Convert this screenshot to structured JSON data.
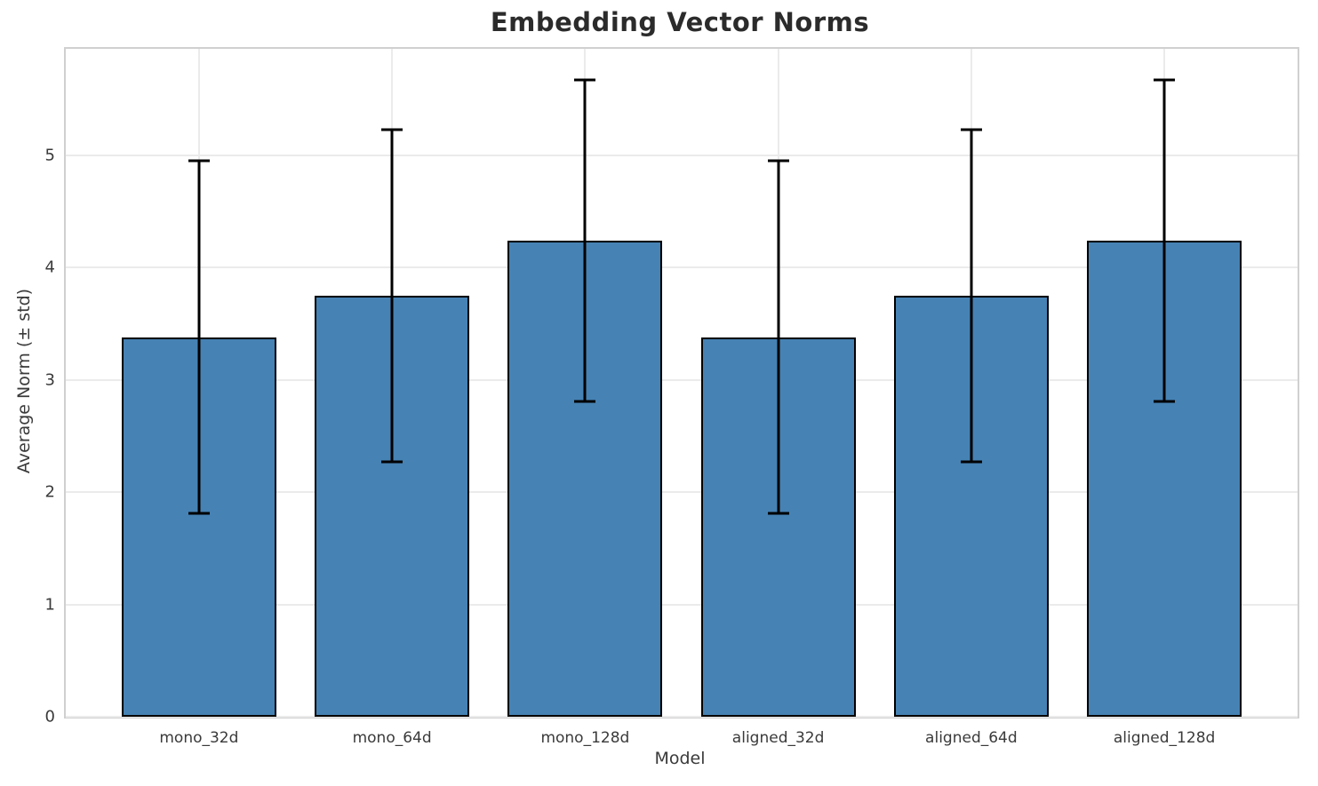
{
  "chart_data": {
    "type": "bar",
    "title": "Embedding Vector Norms",
    "xlabel": "Model",
    "ylabel": "Average Norm (± std)",
    "categories": [
      "mono_32d",
      "mono_64d",
      "mono_128d",
      "aligned_32d",
      "aligned_64d",
      "aligned_128d"
    ],
    "values": [
      3.38,
      3.75,
      4.24,
      3.38,
      3.75,
      4.24
    ],
    "errors": [
      1.57,
      1.48,
      1.43,
      1.57,
      1.48,
      1.43
    ],
    "yticks": [
      0,
      1,
      2,
      3,
      4,
      5
    ],
    "ylim": [
      0,
      5.95
    ],
    "grid": true,
    "legend": "none",
    "bar_color": "#4682B4",
    "bar_edge_color": "#000000",
    "error_color": "#000000"
  }
}
